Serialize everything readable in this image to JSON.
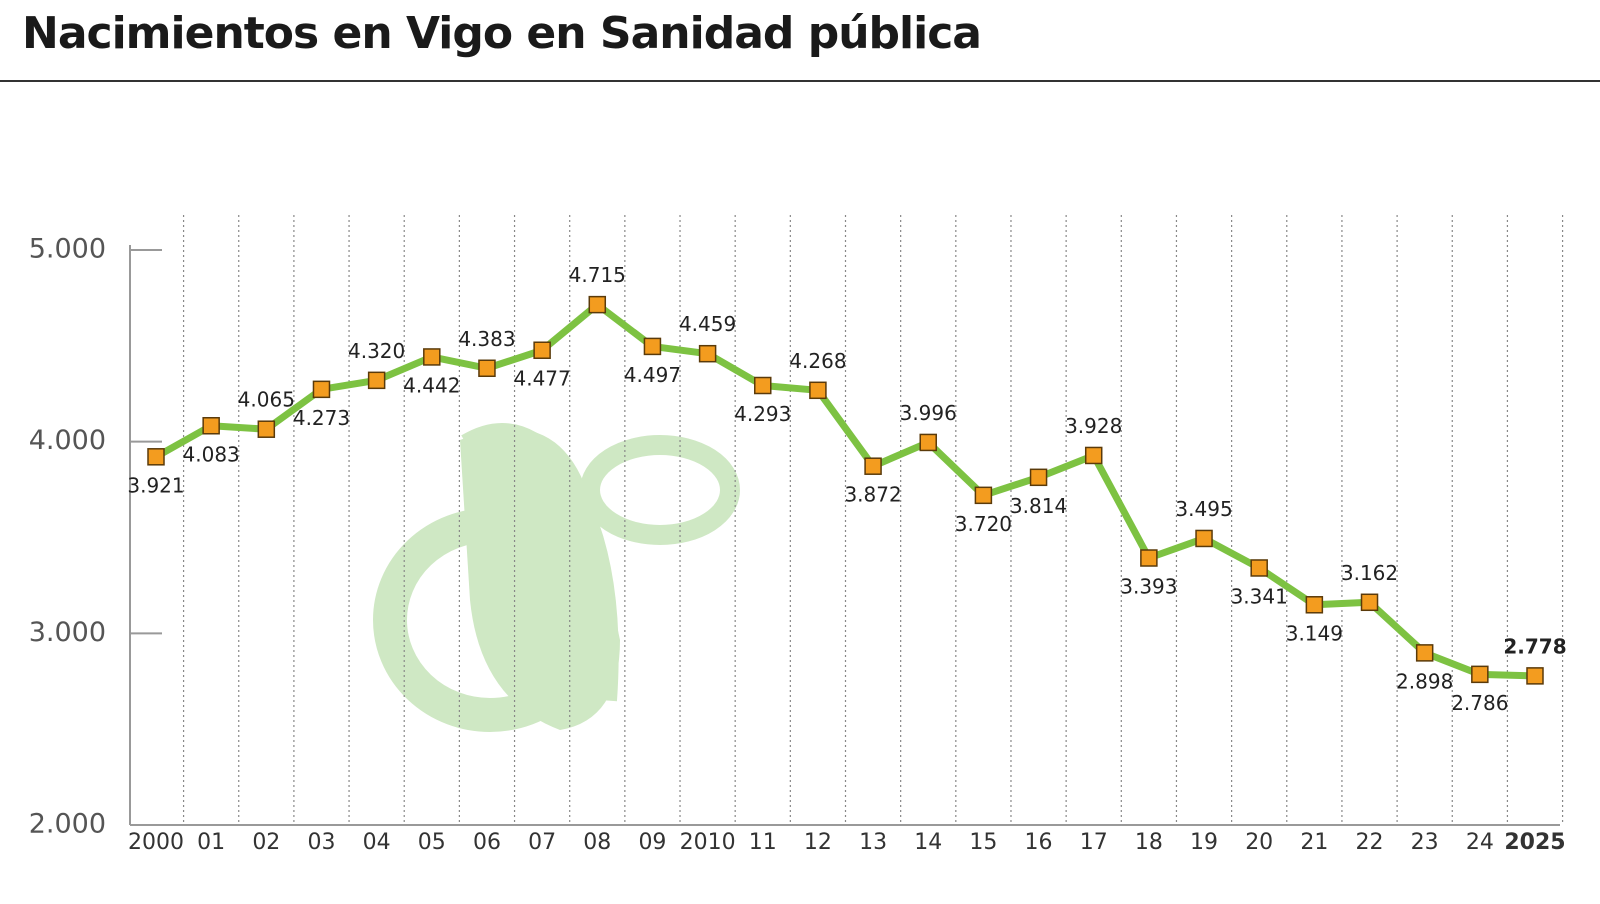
{
  "chart_data": {
    "type": "line",
    "title": "Nacimientos en Vigo en Sanidad pública",
    "categories": [
      "2000",
      "01",
      "02",
      "03",
      "04",
      "05",
      "06",
      "07",
      "08",
      "09",
      "2010",
      "11",
      "12",
      "13",
      "14",
      "15",
      "16",
      "17",
      "18",
      "19",
      "20",
      "21",
      "22",
      "23",
      "24",
      "2025"
    ],
    "series": [
      {
        "name": null,
        "color": "#7dc242",
        "marker_color": "#f39c1f",
        "values": [
          3921,
          4083,
          4065,
          4273,
          4320,
          4442,
          4383,
          4477,
          4715,
          4497,
          4459,
          4293,
          4268,
          3872,
          3996,
          3720,
          3814,
          3928,
          3393,
          3495,
          3341,
          3149,
          3162,
          2898,
          2786,
          2778
        ],
        "value_labels": [
          "3.921",
          "4.083",
          "4.065",
          "4.273",
          "4.320",
          "4.442",
          "4.383",
          "4.477",
          "4.715",
          "4.497",
          "4.459",
          "4.293",
          "4.268",
          "3.872",
          "3.996",
          "3.720",
          "3.814",
          "3.928",
          "3.393",
          "3.495",
          "3.341",
          "3.149",
          "3.162",
          "2.898",
          "2.786",
          "2.778"
        ]
      }
    ],
    "ylim": [
      2000,
      5000
    ],
    "yticks": [
      {
        "value": 2000,
        "label": "2.000"
      },
      {
        "value": 3000,
        "label": "3.000"
      },
      {
        "value": 4000,
        "label": "4.000"
      },
      {
        "value": 5000,
        "label": "5.000"
      }
    ],
    "grid": true
  }
}
